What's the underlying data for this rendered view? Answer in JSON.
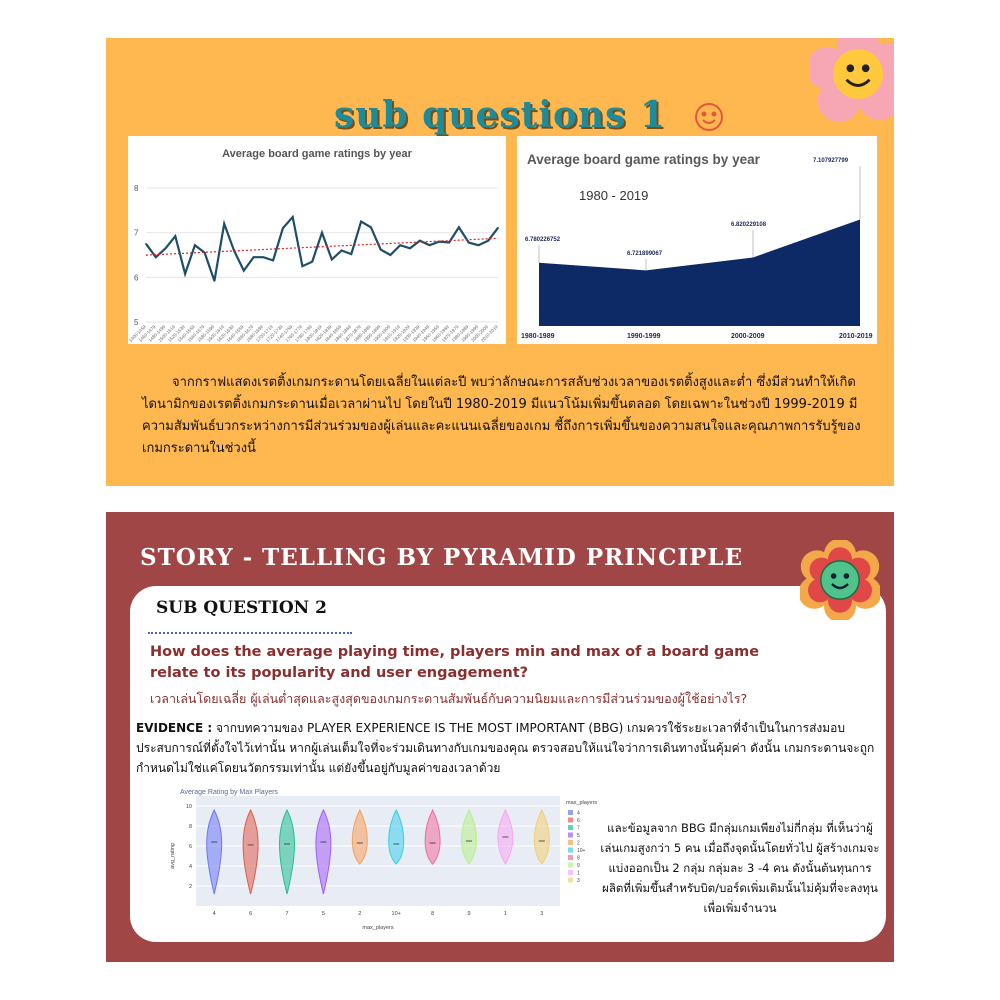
{
  "slide1": {
    "title": "sub questions 1",
    "left_chart": {
      "title": "Average board game ratings by year",
      "y_ticks": [
        "8",
        "7",
        "6",
        "5"
      ],
      "x_labels": [
        "1400-1459",
        "1460-1479",
        "1480-1499",
        "1500-1519",
        "1520-1539",
        "1540-1559",
        "1560-1579",
        "1580-1599",
        "1600-1619",
        "1620-1639",
        "1640-1659",
        "1660-1679",
        "1680-1699",
        "1700-1719",
        "1720-1739",
        "1740-1759",
        "1760-1779",
        "1780-1799",
        "1800-1819",
        "1820-1839",
        "1840-1859",
        "1860-1869",
        "1870-1879",
        "1880-1889",
        "1890-1899",
        "1900-1909",
        "1910-1919",
        "1920-1929",
        "1930-1939",
        "1940-1949",
        "1950-1959",
        "1960-1969",
        "1970-1979",
        "1980-1989",
        "1990-1999",
        "2000-2009",
        "2010-2019"
      ]
    },
    "right_chart": {
      "title": "Average board game ratings by year",
      "subtitle": "1980 - 2019"
    },
    "paragraph": "จากกราฟแสดงเรตติ้งเกมกระดานโดยเฉลี่ยในแต่ละปี พบว่าลักษณะการสลับช่วงเวลาของเรตติ้งสูงและต่ำ ซึ่งมีส่วนทำให้เกิดไดนามิกของเรตติ้งเกมกระดานเมื่อเวลาผ่านไป โดยในปี 1980-2019 มีแนวโน้มเพิ่มขึ้นตลอด โดยเฉพาะในช่วงปี 1999-2019 มีความสัมพันธ์บวกระหว่างการมีส่วนร่วมของผู้เล่นและคะแนนเฉลี่ยของเกม ชี้ถึงการเพิ่มขึ้นของความสนใจและคุณภาพการรับรู้ของเกมกระดานในช่วงนี้"
  },
  "slide2": {
    "title": "STORY - TELLING BY PYRAMID PRINCIPLE",
    "sub_question": "SUB QUESTION 2",
    "question_en": "How does the average playing time, players min and max of a board game relate to its popularity and user engagement?",
    "question_th": "เวลาเล่นโดยเฉลี่ย ผู้เล่นต่ำสุดและสูงสุดของเกมกระดานสัมพันธ์กับความนิยมและการมีส่วนร่วมของผู้ใช้อย่างไร?",
    "evidence_label": "EVIDENCE :",
    "evidence_text": " จากบทความของ PLAYER EXPERIENCE IS THE MOST IMPORTANT (BBG) เกมควรใช้ระยะเวลาที่จำเป็นในการส่งมอบประสบการณ์ที่ตั้งใจไว้เท่านั้น หากผู้เล่นเต็มใจที่จะร่วมเดินทางกับเกมของคุณ ตรวจสอบให้แน่ใจว่าการเดินทางนั้นคุ้มค่า ดังนั้น เกมกระดานจะถูกกำหนดไม่ใช่แค่โดยนวัตกรรมเท่านั้น แต่ยังขึ้นอยู่กับมูลค่าของเวลาด้วย",
    "violin_chart": {
      "title": "Average Rating by Max Players",
      "xlabel": "max_players",
      "ylabel": "avg_rating",
      "y_ticks": [
        "10",
        "8",
        "6",
        "4",
        "2"
      ],
      "legend_title": "max_players"
    },
    "paragraph": "และข้อมูลจาก BBG มีกลุ่มเกมเพียงไม่กี่กลุ่ม ที่เห็นว่าผู้เล่นเกมสูงกว่า 5 คน เมื่อถึงจุดนั้นโดยทั่วไป ผู้สร้างเกมจะแบ่งออกเป็น 2 กลุ่ม กลุ่มละ 3 -4 คน ดังนั้นต้นทุนการผลิตที่เพิ่มขึ้นสำหรับบิต/บอร์ดเพิ่มเติมนั้นไม่คุ้มที่จะลงทุนเพื่อเพิ่มจำนวน"
  },
  "chart_data": [
    {
      "type": "line",
      "title": "Average board game ratings by year",
      "x": [
        "1400-1459",
        "1460-1479",
        "1480-1499",
        "1500-1519",
        "1520-1539",
        "1540-1559",
        "1560-1579",
        "1580-1599",
        "1600-1619",
        "1620-1639",
        "1640-1659",
        "1660-1679",
        "1680-1699",
        "1700-1719",
        "1720-1739",
        "1740-1759",
        "1760-1779",
        "1780-1799",
        "1800-1819",
        "1820-1839",
        "1840-1859",
        "1860-1869",
        "1870-1879",
        "1880-1889",
        "1890-1899",
        "1900-1909",
        "1910-1919",
        "1920-1929",
        "1930-1939",
        "1940-1949",
        "1950-1959",
        "1960-1969",
        "1970-1979",
        "1980-1989",
        "1990-1999",
        "2000-2009",
        "2010-2019"
      ],
      "values": [
        6.75,
        6.45,
        6.65,
        6.92,
        6.08,
        6.72,
        6.55,
        5.92,
        7.2,
        6.6,
        6.15,
        6.45,
        6.45,
        6.38,
        7.1,
        7.35,
        6.25,
        6.35,
        7.0,
        6.4,
        6.6,
        6.52,
        7.25,
        7.12,
        6.62,
        6.5,
        6.72,
        6.65,
        6.82,
        6.72,
        6.8,
        6.78,
        7.12,
        6.78,
        6.72,
        6.82,
        7.11
      ],
      "trendline": true,
      "ylim": [
        5,
        8
      ],
      "grid": true
    },
    {
      "type": "area",
      "title": "Average board game ratings by year",
      "subtitle": "1980 - 2019",
      "categories": [
        "1980-1989",
        "1990-1999",
        "2000-2009",
        "2010-2019"
      ],
      "values": [
        6.780226752,
        6.721899067,
        6.820229108,
        7.107927799
      ],
      "data_labels": [
        "6.780226752",
        "6.721899067",
        "6.820229108",
        "7.107927799"
      ],
      "color": "#0d2a66"
    },
    {
      "type": "violin",
      "title": "Average Rating by Max Players",
      "xlabel": "max_players",
      "ylabel": "avg_rating",
      "categories": [
        "4",
        "6",
        "7",
        "5",
        "2",
        "10+",
        "8",
        "9",
        "1",
        "3"
      ],
      "medians": [
        6.4,
        6.1,
        6.2,
        6.4,
        6.3,
        6.2,
        6.3,
        6.5,
        6.9,
        6.5
      ],
      "ylim": [
        0,
        10
      ],
      "legend": [
        "4",
        "6",
        "7",
        "5",
        "2",
        "10+",
        "8",
        "9",
        "1",
        "3"
      ],
      "colors": [
        "#6b78f5",
        "#e05c4a",
        "#22c08e",
        "#a35ef5",
        "#f5a15a",
        "#3ccfe8",
        "#f06e9a",
        "#b8ee8a",
        "#f8a6f0",
        "#f3cf72"
      ]
    }
  ]
}
